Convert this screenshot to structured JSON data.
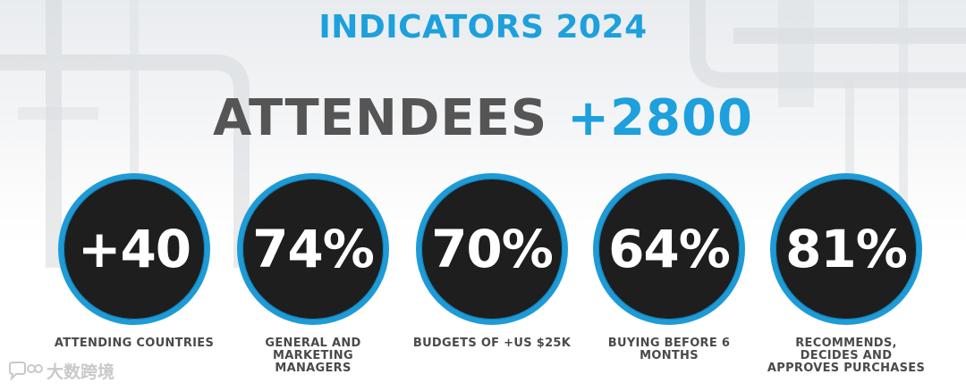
{
  "header": {
    "title": "INDICATORS 2024",
    "headline_label": "ATTENDEES",
    "headline_value": "+2800"
  },
  "stats": [
    {
      "value": "+40",
      "caption_lines": [
        "ATTENDING COUNTRIES"
      ]
    },
    {
      "value": "74%",
      "caption_lines": [
        "GENERAL AND",
        "MARKETING",
        "MANAGERS"
      ]
    },
    {
      "value": "70%",
      "caption_lines": [
        "BUDGETS OF +US $25K"
      ]
    },
    {
      "value": "64%",
      "caption_lines": [
        "BUYING BEFORE 6",
        "MONTHS"
      ]
    },
    {
      "value": "81%",
      "caption_lines": [
        "RECOMMENDS,",
        "DECIDES AND",
        "APPROVES PURCHASES"
      ]
    }
  ],
  "watermark": {
    "text": "大数跨境",
    "icon": "speech-bubble-logo-icon"
  },
  "colors": {
    "accent": "#1da0dc",
    "headline_text": "#555555",
    "circle_fill": "#1e1e1e",
    "circle_ring": "#1e9bd7",
    "caption_text": "#4a4a4a"
  }
}
